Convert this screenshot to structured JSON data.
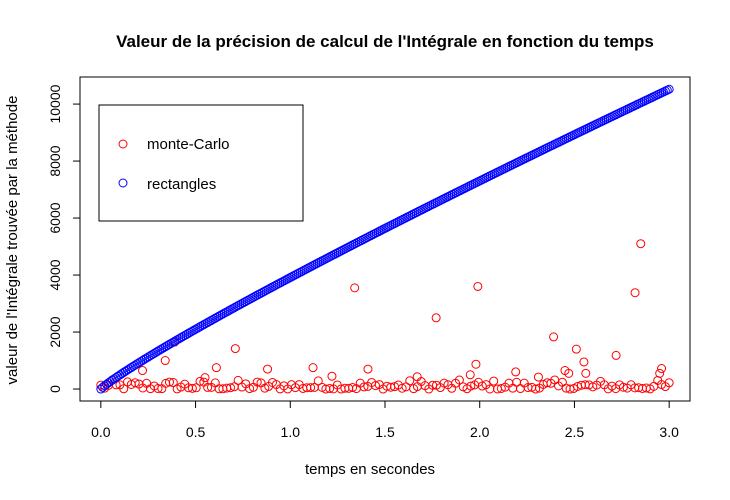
{
  "chart_data": {
    "type": "scatter",
    "title": "Valeur de la précision de calcul de l'Intégrale en fonction du temps",
    "xlabel": "temps en secondes",
    "ylabel": "valeur de l'Intégrale trouvée par la méthode",
    "xlim": [
      -0.11,
      3.11
    ],
    "ylim": [
      -420,
      10950
    ],
    "x_ticks": [
      0.0,
      0.5,
      1.0,
      1.5,
      2.0,
      2.5,
      3.0
    ],
    "x_tick_labels": [
      "0.0",
      "0.5",
      "1.0",
      "1.5",
      "2.0",
      "2.5",
      "3.0"
    ],
    "y_ticks": [
      0,
      2000,
      4000,
      6000,
      8000,
      10000
    ],
    "y_tick_labels": [
      "0",
      "2000",
      "4000",
      "6000",
      "8000",
      "10000"
    ],
    "marker": "open-circle",
    "legend_position": "top-left",
    "series": [
      {
        "name": "monte-Carlo",
        "color": "#ff0000",
        "outliers": [
          {
            "x": 0.22,
            "y": 650
          },
          {
            "x": 0.34,
            "y": 1000
          },
          {
            "x": 0.39,
            "y": 1650
          },
          {
            "x": 0.61,
            "y": 750
          },
          {
            "x": 0.71,
            "y": 1420
          },
          {
            "x": 0.88,
            "y": 700
          },
          {
            "x": 1.12,
            "y": 750
          },
          {
            "x": 1.34,
            "y": 3550
          },
          {
            "x": 1.41,
            "y": 700
          },
          {
            "x": 1.77,
            "y": 2500
          },
          {
            "x": 1.95,
            "y": 500
          },
          {
            "x": 1.98,
            "y": 870
          },
          {
            "x": 1.99,
            "y": 3600
          },
          {
            "x": 2.19,
            "y": 600
          },
          {
            "x": 2.39,
            "y": 1830
          },
          {
            "x": 2.45,
            "y": 650
          },
          {
            "x": 2.47,
            "y": 550
          },
          {
            "x": 2.51,
            "y": 1400
          },
          {
            "x": 2.55,
            "y": 950
          },
          {
            "x": 2.56,
            "y": 550
          },
          {
            "x": 2.72,
            "y": 1180
          },
          {
            "x": 2.82,
            "y": 3380
          },
          {
            "x": 2.85,
            "y": 5100
          },
          {
            "x": 2.95,
            "y": 550
          },
          {
            "x": 2.96,
            "y": 720
          },
          {
            "x": 0.55,
            "y": 400
          },
          {
            "x": 1.22,
            "y": 450
          },
          {
            "x": 1.67,
            "y": 430
          },
          {
            "x": 2.31,
            "y": 420
          }
        ],
        "baseline": {
          "x_from": 0.0,
          "x_to": 3.0,
          "count": 150,
          "y_max": 320
        }
      },
      {
        "name": "rectangles",
        "color": "#0000ff",
        "curve": {
          "x_from": 0.0,
          "x_to": 3.0,
          "count": 300,
          "y_at_x_from": 0,
          "y_at_x_to": 10520,
          "exponent": 0.9
        }
      }
    ]
  }
}
